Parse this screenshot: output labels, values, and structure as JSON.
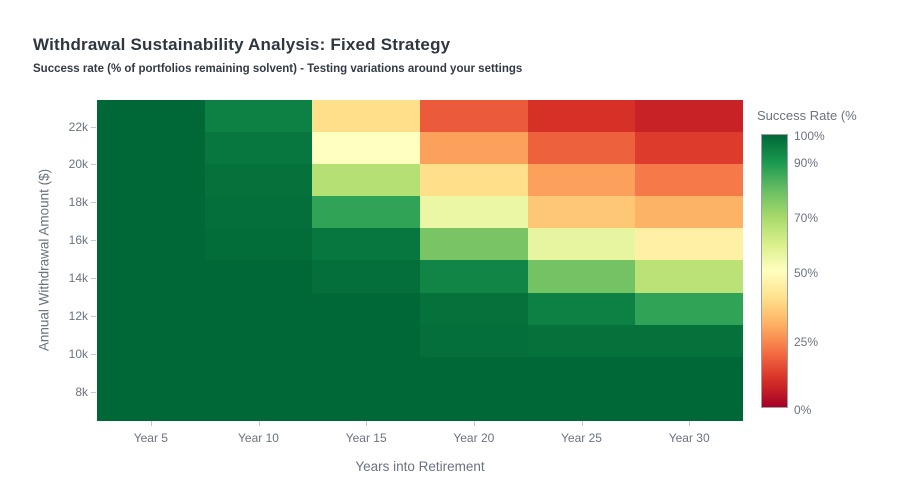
{
  "header": {
    "title": "Withdrawal Sustainability Analysis: Fixed Strategy",
    "subtitle": "Success rate (% of portfolios remaining solvent) - Testing variations around your settings"
  },
  "chart_data": {
    "type": "heatmap",
    "title": "Withdrawal Sustainability Analysis: Fixed Strategy",
    "subtitle": "Success rate (% of portfolios remaining solvent) - Testing variations around your settings",
    "x_label": "Years into Retirement",
    "y_label": "Annual Withdrawal Amount ($)",
    "x_categories": [
      "Year 5",
      "Year 10",
      "Year 15",
      "Year 20",
      "Year 25",
      "Year 30"
    ],
    "y_values_top_to_bottom": [
      22500,
      20833,
      19167,
      17500,
      15833,
      14167,
      12500,
      10833,
      9167,
      7500
    ],
    "y_axis": {
      "range_bottom": 6450,
      "range_top": 23400,
      "tick_values": [
        22000,
        20000,
        18000,
        16000,
        14000,
        12000,
        10000,
        8000
      ],
      "tick_labels": [
        "22k",
        "20k",
        "18k",
        "16k",
        "14k",
        "12k",
        "10k",
        "8k"
      ]
    },
    "values_percent_rows_top_to_bottom": [
      [
        100,
        95,
        40,
        17,
        10,
        7
      ],
      [
        100,
        97,
        50,
        28,
        18,
        12
      ],
      [
        100,
        98,
        67,
        40,
        28,
        22
      ],
      [
        100,
        98.5,
        87,
        55,
        35,
        31
      ],
      [
        100,
        99,
        97,
        77,
        56,
        45
      ],
      [
        100,
        100,
        98.5,
        94,
        78,
        66
      ],
      [
        100,
        100,
        100,
        98,
        95,
        87
      ],
      [
        100,
        100,
        100,
        98.5,
        98,
        98
      ],
      [
        100,
        100,
        100,
        100,
        100,
        100
      ],
      [
        100,
        100,
        100,
        100,
        100,
        100
      ]
    ],
    "colorscale_rdylgn_0_to_100": [
      "#a50026",
      "#d73027",
      "#f46d43",
      "#fdae61",
      "#fee08b",
      "#ffffbf",
      "#d9ef8b",
      "#a6d96a",
      "#66bd63",
      "#1a9850",
      "#006837"
    ],
    "colorbar": {
      "title": "Success Rate (%",
      "range": [
        0,
        100
      ],
      "tick_values": [
        100,
        90,
        70,
        50,
        25,
        0
      ],
      "tick_labels": [
        "100%",
        "90%",
        "70%",
        "50%",
        "25%",
        "0%"
      ]
    },
    "legend_position": "right",
    "grid": false
  }
}
